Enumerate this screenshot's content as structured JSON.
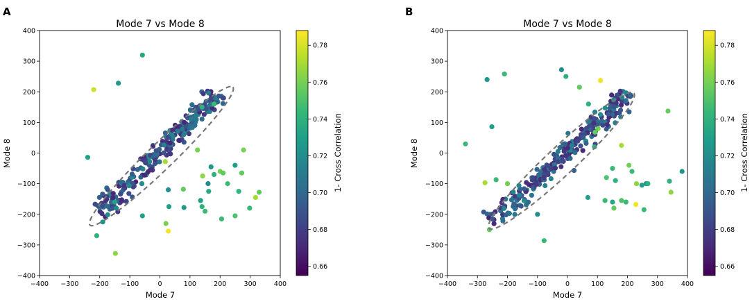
{
  "colormap": {
    "name": "viridis",
    "stops": [
      "#440154",
      "#482878",
      "#3e4989",
      "#31688e",
      "#26828e",
      "#1f9e89",
      "#35b779",
      "#6ece58",
      "#b5de2b",
      "#fde725"
    ],
    "domain": [
      0.655,
      0.788
    ]
  },
  "ellipse_color": "#777777",
  "chart_data": [
    {
      "type": "scatter",
      "panel_label": "A",
      "title": "Mode 7 vs Mode 8",
      "xlabel": "Mode 7",
      "ylabel": "Mode 8",
      "xlim": [
        -400,
        400
      ],
      "ylim": [
        -400,
        400
      ],
      "xticks": [
        "−400",
        "−300",
        "−200",
        "−100",
        "0",
        "100",
        "200",
        "300",
        "400"
      ],
      "yticks": [
        "400",
        "300",
        "200",
        "100",
        "0",
        "−100",
        "−200",
        "−300",
        "−400"
      ],
      "colorbar": {
        "label": "1- Cross Correlation",
        "ticks": [
          "0.78",
          "0.76",
          "0.74",
          "0.72",
          "0.70",
          "0.68",
          "0.66"
        ],
        "range": [
          0.655,
          0.788
        ]
      },
      "cluster": {
        "from": [
          -200,
          -190
        ],
        "to": [
          200,
          195
        ],
        "count": 260,
        "spread": 16,
        "cmin": 0.67,
        "cmax": 0.72,
        "seed": 7
      },
      "ellipse": {
        "center": [
          5,
          -10
        ],
        "semi_major": 330,
        "semi_minor": 42,
        "angle_deg": 44
      },
      "outliers": [
        {
          "x": -58,
          "y": 320,
          "c": 0.735
        },
        {
          "x": -220,
          "y": 207,
          "c": 0.778
        },
        {
          "x": -138,
          "y": 228,
          "c": 0.725
        },
        {
          "x": -240,
          "y": -14,
          "c": 0.73
        },
        {
          "x": -210,
          "y": -270,
          "c": 0.74
        },
        {
          "x": -148,
          "y": -328,
          "c": 0.765
        },
        {
          "x": -190,
          "y": -225,
          "c": 0.725
        },
        {
          "x": -58,
          "y": -205,
          "c": 0.73
        },
        {
          "x": -60,
          "y": -100,
          "c": 0.72
        },
        {
          "x": 18,
          "y": -28,
          "c": 0.77
        },
        {
          "x": 20,
          "y": -230,
          "c": 0.76
        },
        {
          "x": 28,
          "y": -255,
          "c": 0.785
        },
        {
          "x": 30,
          "y": -175,
          "c": 0.73
        },
        {
          "x": 28,
          "y": -120,
          "c": 0.72
        },
        {
          "x": 78,
          "y": -118,
          "c": 0.755
        },
        {
          "x": 80,
          "y": -178,
          "c": 0.725
        },
        {
          "x": 142,
          "y": -75,
          "c": 0.765
        },
        {
          "x": 135,
          "y": -155,
          "c": 0.73
        },
        {
          "x": 140,
          "y": -175,
          "c": 0.74
        },
        {
          "x": 150,
          "y": -190,
          "c": 0.745
        },
        {
          "x": 162,
          "y": -125,
          "c": 0.735
        },
        {
          "x": 170,
          "y": -45,
          "c": 0.725
        },
        {
          "x": 160,
          "y": -100,
          "c": 0.72
        },
        {
          "x": 180,
          "y": -70,
          "c": 0.74
        },
        {
          "x": 200,
          "y": -60,
          "c": 0.76
        },
        {
          "x": 205,
          "y": -215,
          "c": 0.745
        },
        {
          "x": 210,
          "y": -65,
          "c": 0.755
        },
        {
          "x": 225,
          "y": -100,
          "c": 0.745
        },
        {
          "x": 250,
          "y": -40,
          "c": 0.73
        },
        {
          "x": 250,
          "y": -205,
          "c": 0.75
        },
        {
          "x": 262,
          "y": -125,
          "c": 0.74
        },
        {
          "x": 272,
          "y": -65,
          "c": 0.755
        },
        {
          "x": 278,
          "y": 10,
          "c": 0.76
        },
        {
          "x": 298,
          "y": -180,
          "c": 0.745
        },
        {
          "x": 318,
          "y": -145,
          "c": 0.77
        },
        {
          "x": 330,
          "y": -128,
          "c": 0.755
        },
        {
          "x": 125,
          "y": 10,
          "c": 0.76
        },
        {
          "x": 140,
          "y": 150,
          "c": 0.74
        },
        {
          "x": 180,
          "y": 160,
          "c": 0.745
        },
        {
          "x": -150,
          "y": -160,
          "c": 0.73
        }
      ]
    },
    {
      "type": "scatter",
      "panel_label": "B",
      "title": "Mode 7 vs Mode 8",
      "xlabel": "Mode 7",
      "ylabel": "Mode 8",
      "xlim": [
        -400,
        400
      ],
      "ylim": [
        -400,
        400
      ],
      "xticks": [
        "−400",
        "−300",
        "−200",
        "−100",
        "0",
        "100",
        "200",
        "300",
        "400"
      ],
      "yticks": [
        "400",
        "300",
        "200",
        "100",
        "0",
        "−100",
        "−200",
        "−300",
        "−400"
      ],
      "colorbar": {
        "label": "1- Cross Correlation",
        "ticks": [
          "0.78",
          "0.76",
          "0.74",
          "0.72",
          "0.70",
          "0.68",
          "0.66"
        ],
        "range": [
          0.655,
          0.788
        ]
      },
      "cluster": {
        "from": [
          -250,
          -225
        ],
        "to": [
          205,
          195
        ],
        "count": 260,
        "spread": 16,
        "cmin": 0.67,
        "cmax": 0.72,
        "seed": 11
      },
      "ellipse": {
        "center": [
          -20,
          -25
        ],
        "semi_major": 330,
        "semi_minor": 46,
        "angle_deg": 43
      },
      "outliers": [
        {
          "x": -20,
          "y": 272,
          "c": 0.72
        },
        {
          "x": -5,
          "y": 250,
          "c": 0.74
        },
        {
          "x": -210,
          "y": 258,
          "c": 0.745
        },
        {
          "x": -268,
          "y": 240,
          "c": 0.725
        },
        {
          "x": 110,
          "y": 237,
          "c": 0.785
        },
        {
          "x": 40,
          "y": 215,
          "c": 0.755
        },
        {
          "x": -252,
          "y": 86,
          "c": 0.73
        },
        {
          "x": -340,
          "y": 30,
          "c": 0.745
        },
        {
          "x": -275,
          "y": -97,
          "c": 0.77
        },
        {
          "x": -238,
          "y": -87,
          "c": 0.745
        },
        {
          "x": -200,
          "y": -100,
          "c": 0.76
        },
        {
          "x": -260,
          "y": -250,
          "c": 0.755
        },
        {
          "x": -78,
          "y": -286,
          "c": 0.745
        },
        {
          "x": -100,
          "y": -200,
          "c": 0.72
        },
        {
          "x": 92,
          "y": 68,
          "c": 0.755
        },
        {
          "x": 102,
          "y": 80,
          "c": 0.76
        },
        {
          "x": 90,
          "y": 20,
          "c": 0.74
        },
        {
          "x": 180,
          "y": 25,
          "c": 0.77
        },
        {
          "x": 68,
          "y": -145,
          "c": 0.73
        },
        {
          "x": 130,
          "y": -80,
          "c": 0.75
        },
        {
          "x": 150,
          "y": -50,
          "c": 0.745
        },
        {
          "x": 160,
          "y": -90,
          "c": 0.74
        },
        {
          "x": 125,
          "y": -155,
          "c": 0.745
        },
        {
          "x": 150,
          "y": -160,
          "c": 0.735
        },
        {
          "x": 155,
          "y": -180,
          "c": 0.755
        },
        {
          "x": 180,
          "y": -155,
          "c": 0.75
        },
        {
          "x": 195,
          "y": -160,
          "c": 0.745
        },
        {
          "x": 205,
          "y": -40,
          "c": 0.76
        },
        {
          "x": 215,
          "y": -60,
          "c": 0.745
        },
        {
          "x": 228,
          "y": -168,
          "c": 0.785
        },
        {
          "x": 230,
          "y": -100,
          "c": 0.765
        },
        {
          "x": 248,
          "y": -105,
          "c": 0.73
        },
        {
          "x": 262,
          "y": -100,
          "c": 0.725
        },
        {
          "x": 255,
          "y": -185,
          "c": 0.745
        },
        {
          "x": 335,
          "y": 137,
          "c": 0.755
        },
        {
          "x": 340,
          "y": -92,
          "c": 0.74
        },
        {
          "x": 345,
          "y": -128,
          "c": 0.765
        },
        {
          "x": 382,
          "y": -60,
          "c": 0.725
        },
        {
          "x": 268,
          "y": -100,
          "c": 0.74
        },
        {
          "x": 70,
          "y": 160,
          "c": 0.74
        }
      ]
    }
  ]
}
